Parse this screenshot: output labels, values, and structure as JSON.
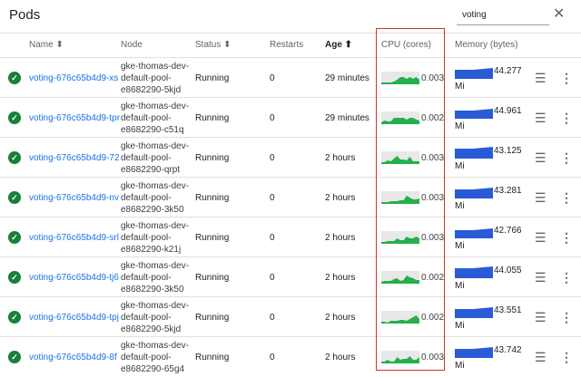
{
  "header": {
    "title": "Pods",
    "search_value": "voting",
    "close_icon": "close-icon"
  },
  "columns": {
    "name": "Name ⬍",
    "node": "Node",
    "status": "Status ⬍",
    "restarts": "Restarts",
    "age": "Age ⬆",
    "cpu": "CPU (cores)",
    "memory": "Memory (bytes)"
  },
  "colors": {
    "link": "#1a73e8",
    "ok": "#188038",
    "cpu": "#22b14c",
    "memory": "#2a5bd7",
    "highlight": "#d32f2f"
  },
  "rows": [
    {
      "name": "voting-676c65b4d9-xs",
      "node": "gke-thomas-dev-default-pool-e8682290-5kjd",
      "status": "Running",
      "restarts": "0",
      "age": "29 minutes",
      "cpu": "0.003",
      "memory": "44.277",
      "mem_unit": "Mi"
    },
    {
      "name": "voting-676c65b4d9-tpr",
      "node": "gke-thomas-dev-default-pool-e8682290-c51q",
      "status": "Running",
      "restarts": "0",
      "age": "29 minutes",
      "cpu": "0.002",
      "memory": "44.961",
      "mem_unit": "Mi"
    },
    {
      "name": "voting-676c65b4d9-72",
      "node": "gke-thomas-dev-default-pool-e8682290-qrpt",
      "status": "Running",
      "restarts": "0",
      "age": "2 hours",
      "cpu": "0.003",
      "memory": "43.125",
      "mem_unit": "Mi"
    },
    {
      "name": "voting-676c65b4d9-nv",
      "node": "gke-thomas-dev-default-pool-e8682290-3k50",
      "status": "Running",
      "restarts": "0",
      "age": "2 hours",
      "cpu": "0.003",
      "memory": "43.281",
      "mem_unit": "Mi"
    },
    {
      "name": "voting-676c65b4d9-srl",
      "node": "gke-thomas-dev-default-pool-e8682290-k21j",
      "status": "Running",
      "restarts": "0",
      "age": "2 hours",
      "cpu": "0.003",
      "memory": "42.766",
      "mem_unit": "Mi"
    },
    {
      "name": "voting-676c65b4d9-tj6",
      "node": "gke-thomas-dev-default-pool-e8682290-3k50",
      "status": "Running",
      "restarts": "0",
      "age": "2 hours",
      "cpu": "0.002",
      "memory": "44.055",
      "mem_unit": "Mi"
    },
    {
      "name": "voting-676c65b4d9-tpj",
      "node": "gke-thomas-dev-default-pool-e8682290-5kjd",
      "status": "Running",
      "restarts": "0",
      "age": "2 hours",
      "cpu": "0.002",
      "memory": "43.551",
      "mem_unit": "Mi"
    },
    {
      "name": "voting-676c65b4d9-8f",
      "node": "gke-thomas-dev-default-pool-e8682290-65g4",
      "status": "Running",
      "restarts": "0",
      "age": "2 hours",
      "cpu": "0.003",
      "memory": "43.742",
      "mem_unit": "Mi"
    }
  ]
}
